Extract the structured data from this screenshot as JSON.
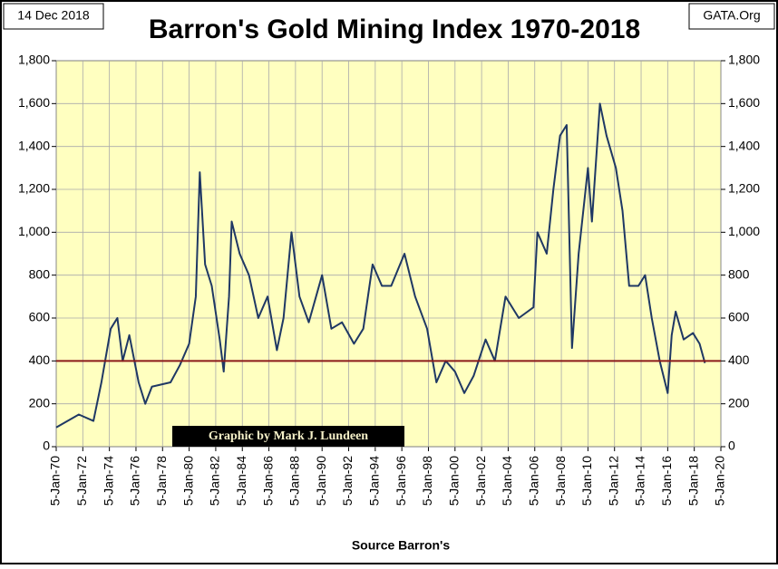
{
  "chart_data": {
    "type": "line",
    "title": "Barron's Gold Mining Index 1970-2018",
    "date_stamp": "14 Dec 2018",
    "source_site": "GATA.Org",
    "credit": "Graphic by Mark J. Lundeen",
    "x_label": "Source Barron's",
    "plot_background": "#ffffc0",
    "grid": true,
    "reference_line": {
      "value": 400,
      "color": "#8b1a1a"
    },
    "xlim": [
      1970,
      2020
    ],
    "xticks": [
      {
        "value": 1970,
        "label": "5-Jan-70"
      },
      {
        "value": 1972,
        "label": "5-Jan-72"
      },
      {
        "value": 1974,
        "label": "5-Jan-74"
      },
      {
        "value": 1976,
        "label": "5-Jan-76"
      },
      {
        "value": 1978,
        "label": "5-Jan-78"
      },
      {
        "value": 1980,
        "label": "5-Jan-80"
      },
      {
        "value": 1982,
        "label": "5-Jan-82"
      },
      {
        "value": 1984,
        "label": "5-Jan-84"
      },
      {
        "value": 1986,
        "label": "5-Jan-86"
      },
      {
        "value": 1988,
        "label": "5-Jan-88"
      },
      {
        "value": 1990,
        "label": "5-Jan-90"
      },
      {
        "value": 1992,
        "label": "5-Jan-92"
      },
      {
        "value": 1994,
        "label": "5-Jan-94"
      },
      {
        "value": 1996,
        "label": "5-Jan-96"
      },
      {
        "value": 1998,
        "label": "5-Jan-98"
      },
      {
        "value": 2000,
        "label": "5-Jan-00"
      },
      {
        "value": 2002,
        "label": "5-Jan-02"
      },
      {
        "value": 2004,
        "label": "5-Jan-04"
      },
      {
        "value": 2006,
        "label": "5-Jan-06"
      },
      {
        "value": 2008,
        "label": "5-Jan-08"
      },
      {
        "value": 2010,
        "label": "5-Jan-10"
      },
      {
        "value": 2012,
        "label": "5-Jan-12"
      },
      {
        "value": 2014,
        "label": "5-Jan-14"
      },
      {
        "value": 2016,
        "label": "5-Jan-16"
      },
      {
        "value": 2018,
        "label": "5-Jan-18"
      },
      {
        "value": 2020,
        "label": "5-Jan-20"
      }
    ],
    "ylim": [
      0,
      1800
    ],
    "yticks": [
      0,
      200,
      400,
      600,
      800,
      {
        "value": 1000,
        "label": "1,000"
      },
      {
        "value": 1200,
        "label": "1,200"
      },
      {
        "value": 1400,
        "label": "1,400"
      },
      {
        "value": 1600,
        "label": "1,600"
      },
      {
        "value": 1800,
        "label": "1,800"
      }
    ],
    "y2lim": [
      0,
      1800
    ],
    "y2ticks": [
      0,
      200,
      400,
      600,
      800,
      {
        "value": 1000,
        "label": "1,000"
      },
      {
        "value": 1200,
        "label": "1,200"
      },
      {
        "value": 1400,
        "label": "1,400"
      },
      {
        "value": 1600,
        "label": "1,600"
      },
      {
        "value": 1800,
        "label": "1,800"
      }
    ],
    "x": [
      1970,
      1971.7,
      1972.8,
      1973.4,
      1974.1,
      1974.6,
      1975,
      1975.5,
      1976.2,
      1976.7,
      1977.2,
      1978.6,
      1979.3,
      1980,
      1980.5,
      1980.8,
      1981.2,
      1981.7,
      1982.3,
      1982.6,
      1983,
      1983.2,
      1983.8,
      1984.5,
      1985.2,
      1985.9,
      1986.6,
      1987.1,
      1987.7,
      1988.3,
      1989,
      1990,
      1990.7,
      1991.5,
      1992.4,
      1993.1,
      1993.8,
      1994.5,
      1995.2,
      1996.2,
      1997,
      1997.9,
      1998.6,
      1999.3,
      2000,
      2000.7,
      2001.4,
      2002.3,
      2003,
      2003.8,
      2004.8,
      2005.9,
      2006.2,
      2006.9,
      2007.4,
      2007.9,
      2008.4,
      2008.8,
      2009.3,
      2010,
      2010.3,
      2010.9,
      2011.4,
      2012.1,
      2012.6,
      2013.1,
      2013.8,
      2014.3,
      2014.8,
      2015.4,
      2016,
      2016.3,
      2016.6,
      2017.2,
      2017.9,
      2018.4,
      2018.8
    ],
    "series": [
      {
        "color": "#1f3864",
        "values": [
          90,
          150,
          120,
          300,
          550,
          600,
          400,
          520,
          300,
          200,
          280,
          300,
          380,
          480,
          700,
          1280,
          850,
          750,
          500,
          350,
          700,
          1050,
          900,
          800,
          600,
          700,
          450,
          600,
          1000,
          700,
          580,
          800,
          550,
          580,
          480,
          550,
          850,
          750,
          750,
          900,
          700,
          550,
          300,
          400,
          350,
          250,
          330,
          500,
          400,
          700,
          600,
          650,
          1000,
          900,
          1200,
          1450,
          1500,
          460,
          900,
          1300,
          1050,
          1600,
          1450,
          1300,
          1100,
          750,
          750,
          800,
          600,
          400,
          250,
          520,
          630,
          500,
          530,
          480,
          390
        ]
      }
    ]
  }
}
